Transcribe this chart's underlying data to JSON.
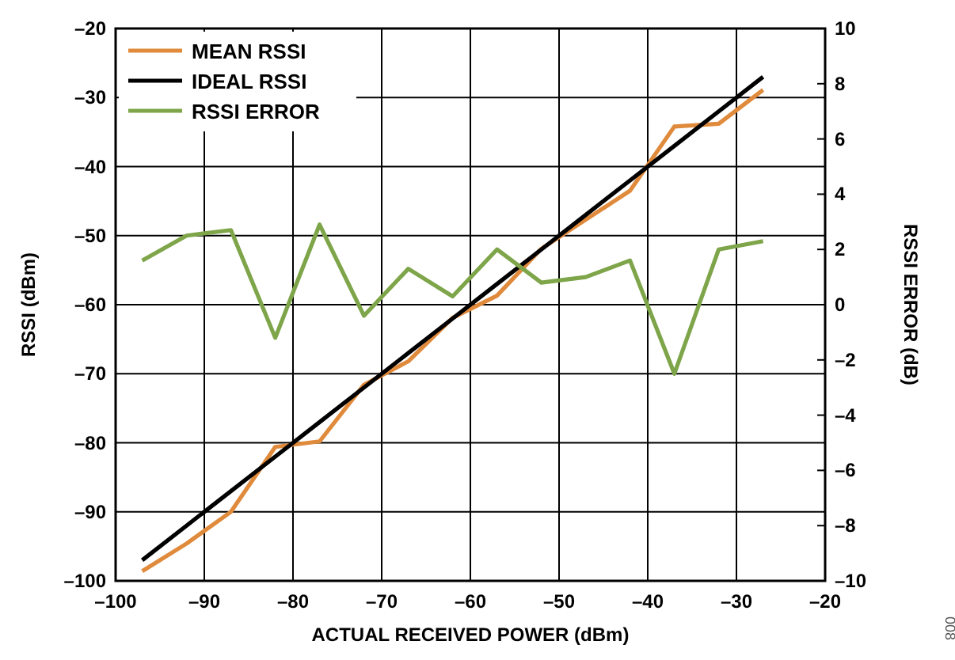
{
  "chart_data": {
    "type": "line",
    "xlabel": "ACTUAL RECEIVED POWER (dBm)",
    "ylabel": "RSSI (dBm)",
    "y2label": "RSSI ERROR (dB)",
    "x": [
      -97,
      -92,
      -87,
      -82,
      -77,
      -72,
      -67,
      -62,
      -57,
      -52,
      -47,
      -42,
      -37,
      -32,
      -27
    ],
    "series": [
      {
        "name": "MEAN RSSI",
        "color": "#e08a3c",
        "values": [
          -98.6,
          -94.6,
          -90.0,
          -80.6,
          -79.8,
          -71.6,
          -68.2,
          -61.9,
          -58.7,
          -51.9,
          -47.7,
          -43.5,
          -34.2,
          -33.8,
          -28.9
        ]
      },
      {
        "name": "IDEAL RSSI",
        "color": "#000000",
        "values": [
          -97,
          -92,
          -87,
          -82,
          -77,
          -72,
          -67,
          -62,
          -57,
          -52,
          -47,
          -42,
          -37,
          -32,
          -27
        ]
      },
      {
        "name": "RSSI ERROR",
        "color": "#7ea549",
        "axis": "y2",
        "values": [
          1.6,
          2.5,
          2.7,
          -1.2,
          2.9,
          -0.4,
          1.3,
          0.3,
          2.0,
          0.8,
          1.0,
          1.6,
          -2.5,
          2.0,
          2.3
        ]
      }
    ],
    "xlim": [
      -100,
      -20
    ],
    "xticks": [
      {
        "value": -100,
        "label": "–100"
      },
      {
        "value": -90,
        "label": "–90"
      },
      {
        "value": -80,
        "label": "–80"
      },
      {
        "value": -70,
        "label": "–70"
      },
      {
        "value": -60,
        "label": "–60"
      },
      {
        "value": -50,
        "label": "–50"
      },
      {
        "value": -40,
        "label": "–40"
      },
      {
        "value": -30,
        "label": "–30"
      },
      {
        "value": -20,
        "label": "–20"
      }
    ],
    "ylim": [
      -100,
      -20
    ],
    "yticks": [
      {
        "value": -100,
        "label": "–100"
      },
      {
        "value": -90,
        "label": "–90"
      },
      {
        "value": -80,
        "label": "–80"
      },
      {
        "value": -70,
        "label": "–70"
      },
      {
        "value": -60,
        "label": "–60"
      },
      {
        "value": -50,
        "label": "–50"
      },
      {
        "value": -40,
        "label": "–40"
      },
      {
        "value": -30,
        "label": "–30"
      },
      {
        "value": -20,
        "label": "–20"
      }
    ],
    "y2lim": [
      -10,
      10
    ],
    "y2ticks": [
      {
        "value": -10,
        "label": "–10"
      },
      {
        "value": -8,
        "label": "–8"
      },
      {
        "value": -6,
        "label": "–6"
      },
      {
        "value": -4,
        "label": "–4"
      },
      {
        "value": -2,
        "label": "–2"
      },
      0,
      2,
      4,
      6,
      8,
      10
    ],
    "grid": true,
    "legend": "top left",
    "line_style": "solid",
    "marker": "none",
    "annotations": [
      "008"
    ]
  }
}
